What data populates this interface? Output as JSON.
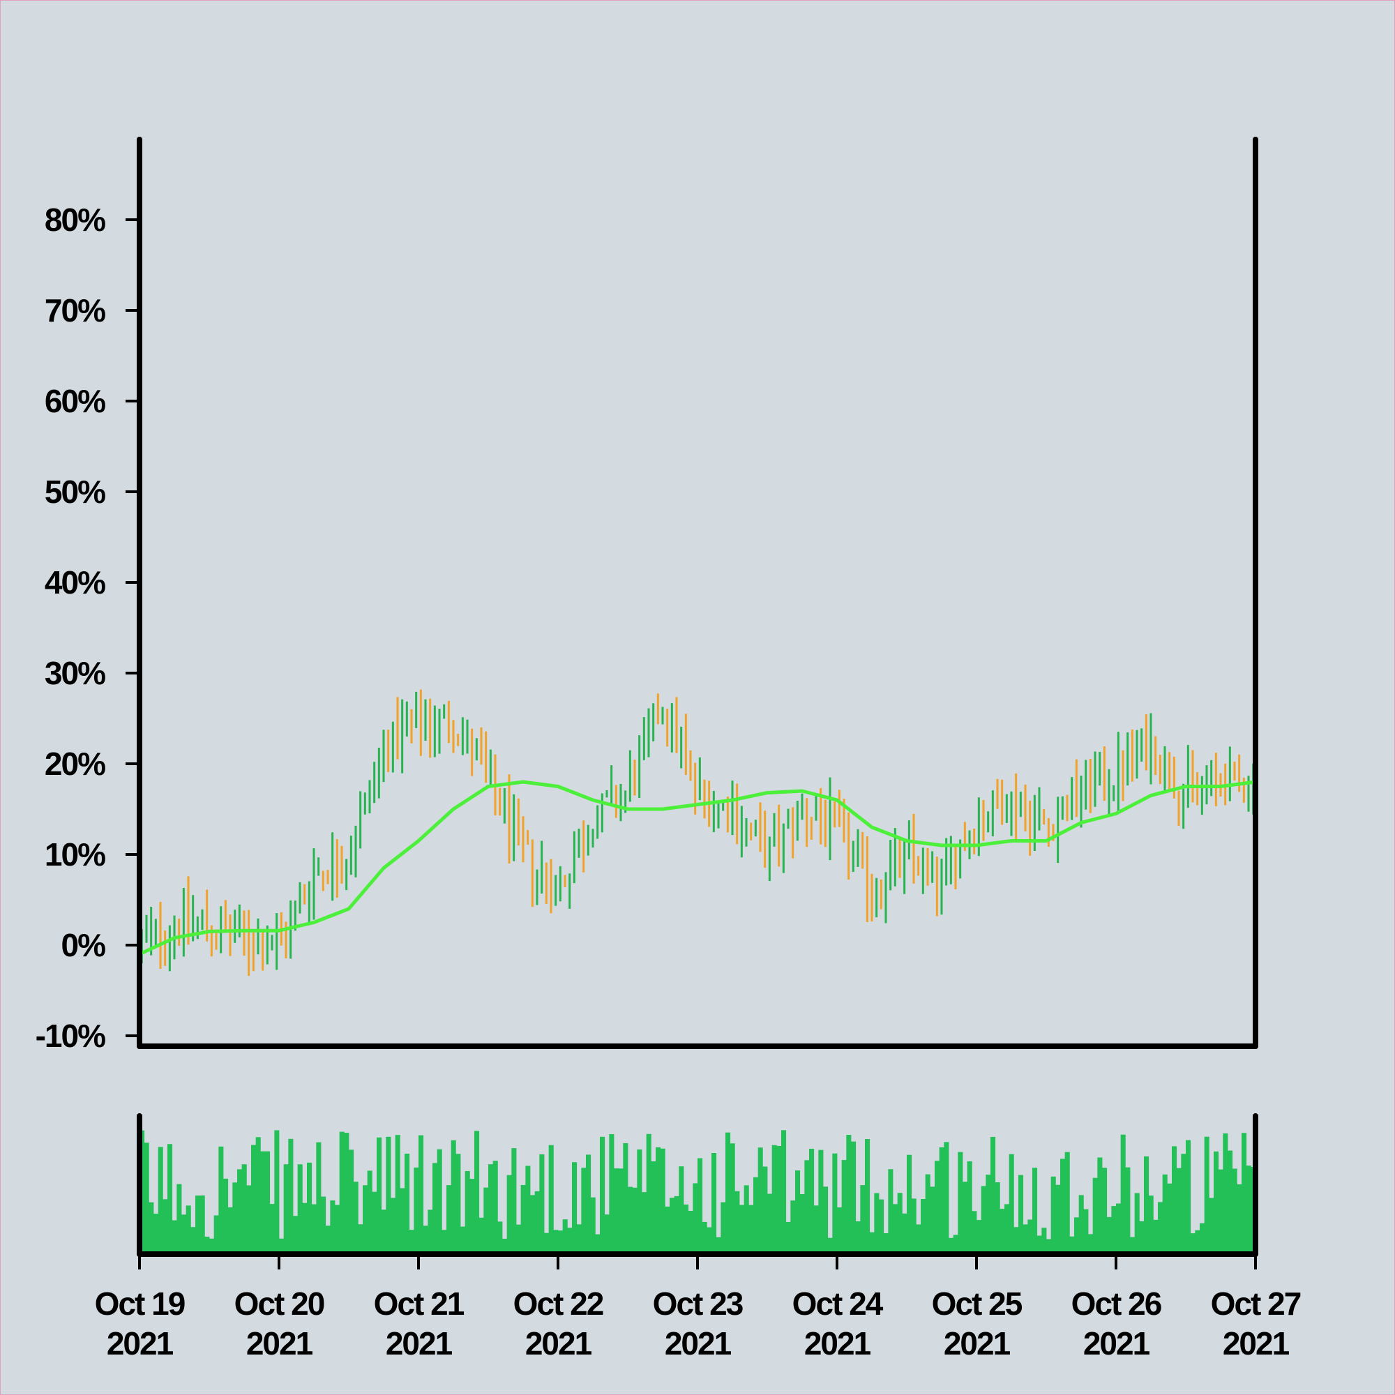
{
  "chart_data": {
    "type": "ohlc",
    "title": "",
    "xlabel": "",
    "ylabel": "",
    "ylim": [
      -10,
      90
    ],
    "y_tick_values": [
      -10,
      0,
      10,
      20,
      30,
      40,
      50,
      60,
      70,
      80
    ],
    "y_tick_labels": [
      "-10%",
      "0%",
      "10%",
      "20%",
      "30%",
      "40%",
      "50%",
      "60%",
      "70%",
      "80%"
    ],
    "x_tick_labels": [
      {
        "line1": "Oct 19",
        "line2": "2021"
      },
      {
        "line1": "Oct 20",
        "line2": "2021"
      },
      {
        "line1": "Oct 21",
        "line2": "2021"
      },
      {
        "line1": "Oct 22",
        "line2": "2021"
      },
      {
        "line1": "Oct 23",
        "line2": "2021"
      },
      {
        "line1": "Oct 24",
        "line2": "2021"
      },
      {
        "line1": "Oct 25",
        "line2": "2021"
      },
      {
        "line1": "Oct 26",
        "line2": "2021"
      },
      {
        "line1": "Oct 27",
        "line2": "2021"
      }
    ],
    "x_start": "2021-10-19",
    "x_end": "2021-10-27",
    "bars_per_day": 30,
    "close_trend": [
      [
        "2021-10-19 00:00",
        0
      ],
      [
        "2021-10-19 08:00",
        3
      ],
      [
        "2021-10-19 16:00",
        1
      ],
      [
        "2021-10-20 00:00",
        0
      ],
      [
        "2021-10-20 06:00",
        8
      ],
      [
        "2021-10-20 12:00",
        10
      ],
      [
        "2021-10-20 18:00",
        22
      ],
      [
        "2021-10-21 00:00",
        24
      ],
      [
        "2021-10-21 06:00",
        25
      ],
      [
        "2021-10-21 12:00",
        18
      ],
      [
        "2021-10-21 18:00",
        10
      ],
      [
        "2021-10-22 00:00",
        6
      ],
      [
        "2021-10-22 06:00",
        14
      ],
      [
        "2021-10-22 12:00",
        17
      ],
      [
        "2021-10-22 18:00",
        27
      ],
      [
        "2021-10-23 00:00",
        17
      ],
      [
        "2021-10-23 06:00",
        15
      ],
      [
        "2021-10-23 12:00",
        10
      ],
      [
        "2021-10-23 18:00",
        15
      ],
      [
        "2021-10-24 00:00",
        13
      ],
      [
        "2021-10-24 06:00",
        6
      ],
      [
        "2021-10-24 12:00",
        10
      ],
      [
        "2021-10-24 18:00",
        7
      ],
      [
        "2021-10-25 00:00",
        14
      ],
      [
        "2021-10-25 06:00",
        16
      ],
      [
        "2021-10-25 12:00",
        13
      ],
      [
        "2021-10-25 18:00",
        17
      ],
      [
        "2021-10-26 00:00",
        19
      ],
      [
        "2021-10-26 06:00",
        22
      ],
      [
        "2021-10-26 12:00",
        17
      ],
      [
        "2021-10-26 18:00",
        18
      ],
      [
        "2021-10-27 00:00",
        18
      ]
    ],
    "bar_range_pct": 7,
    "moving_average": [
      [
        "2021-10-19 00:00",
        -1
      ],
      [
        "2021-10-19 06:00",
        0.8
      ],
      [
        "2021-10-19 12:00",
        1.5
      ],
      [
        "2021-10-19 18:00",
        1.6
      ],
      [
        "2021-10-20 00:00",
        1.6
      ],
      [
        "2021-10-20 06:00",
        2.5
      ],
      [
        "2021-10-20 12:00",
        4
      ],
      [
        "2021-10-20 18:00",
        8.5
      ],
      [
        "2021-10-21 00:00",
        11.5
      ],
      [
        "2021-10-21 06:00",
        15
      ],
      [
        "2021-10-21 12:00",
        17.5
      ],
      [
        "2021-10-21 18:00",
        18
      ],
      [
        "2021-10-22 00:00",
        17.5
      ],
      [
        "2021-10-22 06:00",
        16
      ],
      [
        "2021-10-22 12:00",
        15
      ],
      [
        "2021-10-22 18:00",
        15
      ],
      [
        "2021-10-23 00:00",
        15.5
      ],
      [
        "2021-10-23 06:00",
        16
      ],
      [
        "2021-10-23 12:00",
        16.8
      ],
      [
        "2021-10-23 18:00",
        17
      ],
      [
        "2021-10-24 00:00",
        16
      ],
      [
        "2021-10-24 06:00",
        13
      ],
      [
        "2021-10-24 12:00",
        11.5
      ],
      [
        "2021-10-24 18:00",
        11
      ],
      [
        "2021-10-25 00:00",
        11
      ],
      [
        "2021-10-25 06:00",
        11.5
      ],
      [
        "2021-10-25 12:00",
        11.5
      ],
      [
        "2021-10-25 18:00",
        13.5
      ],
      [
        "2021-10-26 00:00",
        14.5
      ],
      [
        "2021-10-26 06:00",
        16.5
      ],
      [
        "2021-10-26 12:00",
        17.5
      ],
      [
        "2021-10-26 18:00",
        17.5
      ],
      [
        "2021-10-27 00:00",
        18
      ]
    ],
    "volume_profile": "random",
    "colors": {
      "up": "#27b34f",
      "down": "#f0a22a",
      "moving_average": "#4cf03a",
      "volume": "#23bf57",
      "axis": "#000000",
      "background": "#d3dbe0"
    },
    "grid": false,
    "legend": "none"
  }
}
